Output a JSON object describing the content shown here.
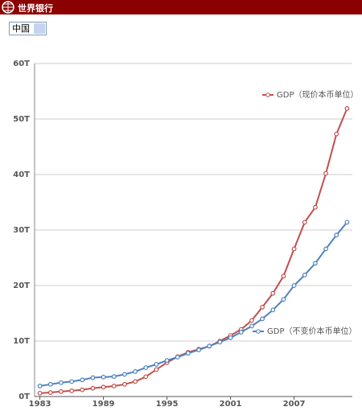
{
  "header": {
    "title": "世界银行"
  },
  "selector": {
    "value": "中国"
  },
  "chart_data": {
    "type": "line",
    "x": [
      1983,
      1984,
      1985,
      1986,
      1987,
      1988,
      1989,
      1990,
      1991,
      1992,
      1993,
      1994,
      1995,
      1996,
      1997,
      1998,
      1999,
      2000,
      2001,
      2002,
      2003,
      2004,
      2005,
      2006,
      2007,
      2008,
      2009,
      2010,
      2011,
      2012
    ],
    "series": [
      {
        "name": "GDP（现价本币单位）",
        "color": "#c0504d",
        "values": [
          0.6,
          0.72,
          0.9,
          1.03,
          1.21,
          1.5,
          1.7,
          1.89,
          2.2,
          2.7,
          3.57,
          4.86,
          6.13,
          7.18,
          7.97,
          8.52,
          9.06,
          10.0,
          11.0,
          12.1,
          13.7,
          16.1,
          18.6,
          21.7,
          26.6,
          31.4,
          34.1,
          40.2,
          47.3,
          51.9
        ]
      },
      {
        "name": "GDP（不变价本币单位）",
        "color": "#4f81bd",
        "values": [
          1.9,
          2.2,
          2.5,
          2.7,
          3.0,
          3.4,
          3.5,
          3.6,
          4.0,
          4.5,
          5.2,
          5.8,
          6.5,
          7.1,
          7.8,
          8.4,
          9.1,
          9.8,
          10.6,
          11.6,
          12.7,
          14.0,
          15.6,
          17.5,
          20.0,
          21.9,
          24.0,
          26.6,
          29.1,
          31.4
        ]
      }
    ],
    "xlim": [
      1982.5,
      2012.5
    ],
    "xticks": [
      1983,
      1989,
      1995,
      2001,
      2007
    ],
    "ylim": [
      0,
      60
    ],
    "yticks": [
      {
        "value": 0,
        "label": "0T"
      },
      {
        "value": 10,
        "label": "10T"
      },
      {
        "value": 20,
        "label": "20T"
      },
      {
        "value": 30,
        "label": "30T"
      },
      {
        "value": 40,
        "label": "40T"
      },
      {
        "value": 50,
        "label": "50T"
      },
      {
        "value": 60,
        "label": "60T"
      }
    ],
    "grid": true
  }
}
